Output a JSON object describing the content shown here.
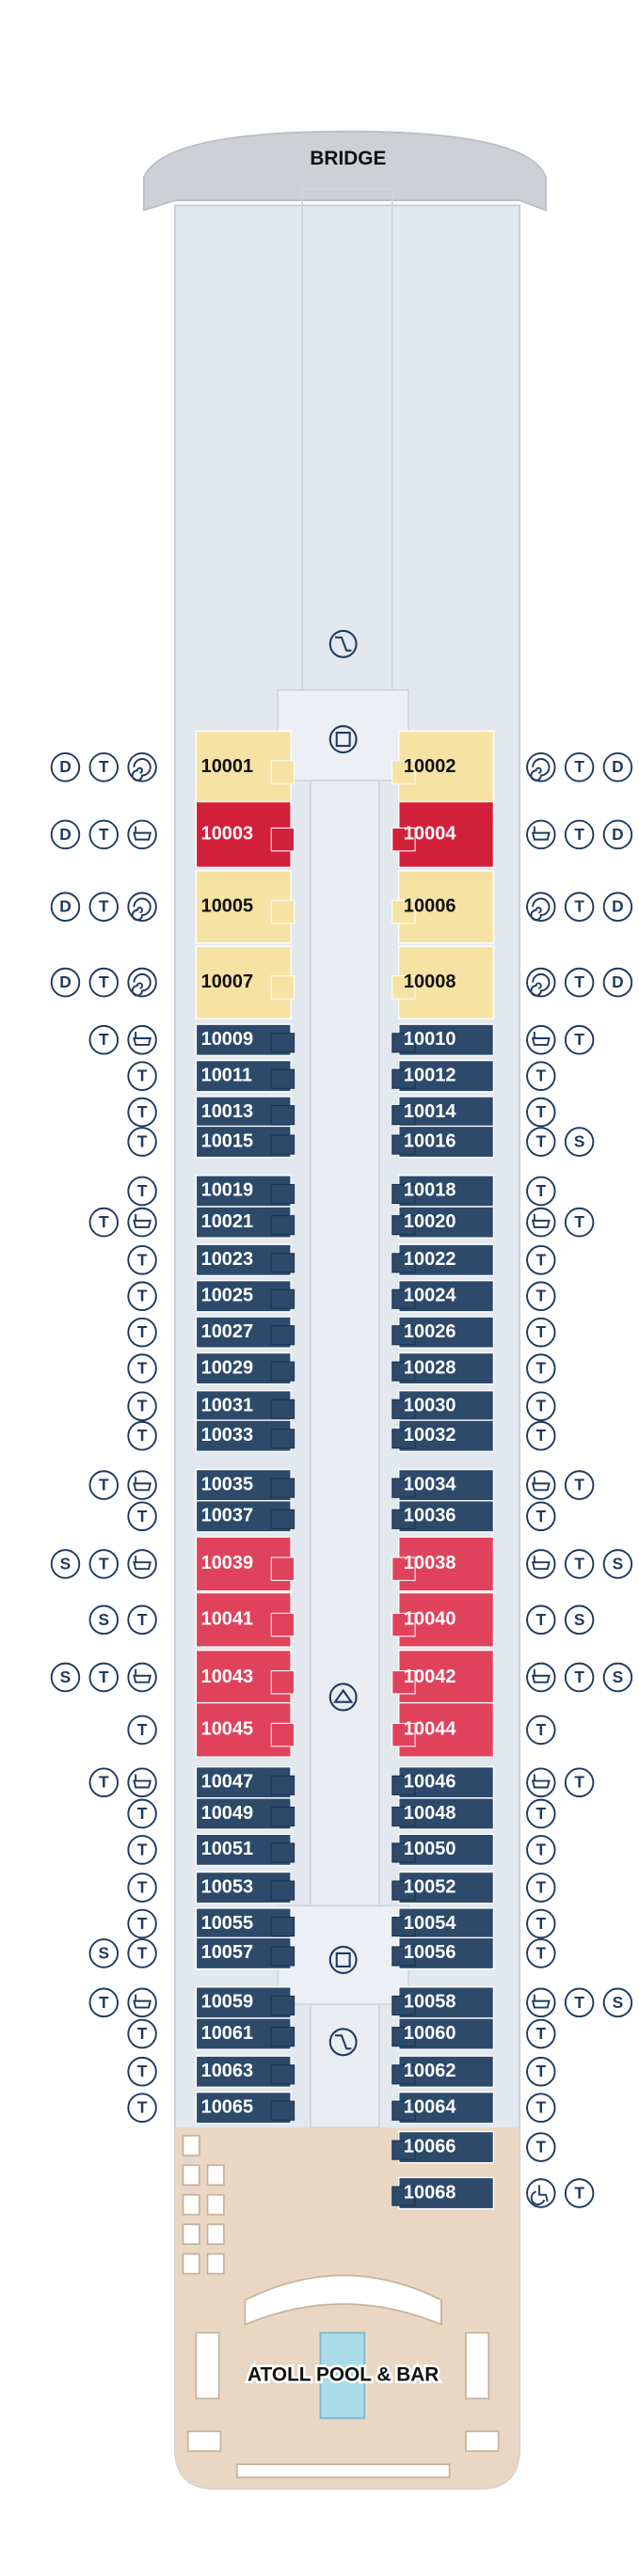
{
  "header": {
    "bridge": "BRIDGE",
    "pool": "ATOLL POOL & BAR"
  },
  "port": [
    {
      "number": "10001",
      "icons": [
        "D",
        "T"
      ]
    },
    {
      "number": "10003",
      "icons": [
        "D",
        "T"
      ]
    },
    {
      "number": "10005",
      "icons": [
        "D",
        "T"
      ]
    },
    {
      "number": "10007",
      "icons": [
        "D",
        "T"
      ]
    },
    {
      "number": "10009",
      "icons": [
        "T"
      ]
    },
    {
      "number": "10011",
      "icons": [
        "T"
      ]
    },
    {
      "number": "10013",
      "icons": [
        "T"
      ]
    },
    {
      "number": "10015",
      "icons": [
        "T"
      ]
    },
    {
      "number": "10019",
      "icons": [
        "T"
      ]
    },
    {
      "number": "10021",
      "icons": [
        "T"
      ]
    },
    {
      "number": "10023",
      "icons": [
        "T"
      ]
    },
    {
      "number": "10025",
      "icons": [
        "T"
      ]
    },
    {
      "number": "10027",
      "icons": [
        "T"
      ]
    },
    {
      "number": "10029",
      "icons": [
        "T"
      ]
    },
    {
      "number": "10031",
      "icons": [
        "T"
      ]
    },
    {
      "number": "10033",
      "icons": [
        "T"
      ]
    },
    {
      "number": "10035",
      "icons": [
        "T"
      ]
    },
    {
      "number": "10037",
      "icons": [
        "T"
      ]
    },
    {
      "number": "10039",
      "icons": [
        "S",
        "T"
      ]
    },
    {
      "number": "10041",
      "icons": [
        "S",
        "T"
      ]
    },
    {
      "number": "10043",
      "icons": [
        "S",
        "T"
      ]
    },
    {
      "number": "10045",
      "icons": [
        "T"
      ]
    },
    {
      "number": "10047",
      "icons": [
        "T"
      ]
    },
    {
      "number": "10049",
      "icons": [
        "T"
      ]
    },
    {
      "number": "10051",
      "icons": [
        "T"
      ]
    },
    {
      "number": "10053",
      "icons": [
        "T"
      ]
    },
    {
      "number": "10055",
      "icons": [
        "T"
      ]
    },
    {
      "number": "10057",
      "icons": [
        "S",
        "T"
      ]
    },
    {
      "number": "10059",
      "icons": [
        "T"
      ]
    },
    {
      "number": "10061",
      "icons": [
        "T"
      ]
    },
    {
      "number": "10063",
      "icons": [
        "T"
      ]
    },
    {
      "number": "10065",
      "icons": [
        "T"
      ]
    }
  ],
  "starboard": [
    {
      "number": "10002",
      "icons": [
        "T",
        "D"
      ]
    },
    {
      "number": "10004",
      "icons": [
        "T",
        "D"
      ]
    },
    {
      "number": "10006",
      "icons": [
        "T",
        "D"
      ]
    },
    {
      "number": "10008",
      "icons": [
        "T",
        "D"
      ]
    },
    {
      "number": "10010",
      "icons": [
        "T"
      ]
    },
    {
      "number": "10012",
      "icons": [
        "T"
      ]
    },
    {
      "number": "10014",
      "icons": [
        "T"
      ]
    },
    {
      "number": "10016",
      "icons": [
        "T",
        "S"
      ]
    },
    {
      "number": "10018",
      "icons": [
        "T"
      ]
    },
    {
      "number": "10020",
      "icons": [
        "T"
      ]
    },
    {
      "number": "10022",
      "icons": [
        "T"
      ]
    },
    {
      "number": "10024",
      "icons": [
        "T"
      ]
    },
    {
      "number": "10026",
      "icons": [
        "T"
      ]
    },
    {
      "number": "10028",
      "icons": [
        "T"
      ]
    },
    {
      "number": "10030",
      "icons": [
        "T"
      ]
    },
    {
      "number": "10032",
      "icons": [
        "T"
      ]
    },
    {
      "number": "10034",
      "icons": [
        "T"
      ]
    },
    {
      "number": "10036",
      "icons": [
        "T"
      ]
    },
    {
      "number": "10038",
      "icons": [
        "T",
        "S"
      ]
    },
    {
      "number": "10040",
      "icons": [
        "T",
        "S"
      ]
    },
    {
      "number": "10042",
      "icons": [
        "T",
        "S"
      ]
    },
    {
      "number": "10044",
      "icons": [
        "T"
      ]
    },
    {
      "number": "10046",
      "icons": [
        "T"
      ]
    },
    {
      "number": "10048",
      "icons": [
        "T"
      ]
    },
    {
      "number": "10050",
      "icons": [
        "T"
      ]
    },
    {
      "number": "10052",
      "icons": [
        "T"
      ]
    },
    {
      "number": "10054",
      "icons": [
        "T"
      ]
    },
    {
      "number": "10056",
      "icons": [
        "T"
      ]
    },
    {
      "number": "10058",
      "icons": [
        "T",
        "S"
      ]
    },
    {
      "number": "10060",
      "icons": [
        "T"
      ]
    },
    {
      "number": "10062",
      "icons": [
        "T"
      ]
    },
    {
      "number": "10064",
      "icons": [
        "T"
      ]
    },
    {
      "number": "10066",
      "icons": [
        "T"
      ]
    },
    {
      "number": "10068",
      "icons": [
        "T"
      ]
    }
  ]
}
